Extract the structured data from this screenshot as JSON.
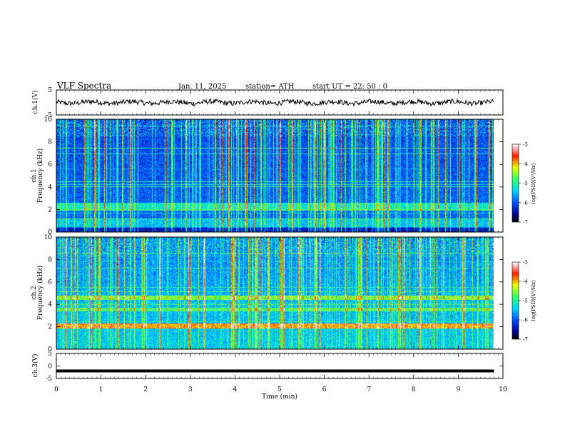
{
  "header": {
    "title": "VLF  Spectra",
    "date": "Jan.  11,  2025",
    "station": "station= ATH",
    "start": "start  UT  =    22:  50 :  0"
  },
  "chart_data": [
    {
      "type": "line",
      "panel": "ch1-waveform",
      "ylabel": "ch.1(V)",
      "ylim": [
        -5,
        5
      ],
      "yticks": [
        "5",
        "-5"
      ],
      "xlim": [
        0,
        10
      ],
      "x_data_end": 9.8,
      "approx_level": 0,
      "approx_amplitude": 1
    },
    {
      "type": "heatmap",
      "panel": "ch1-spectrogram",
      "ylabel_line1": "ch.1",
      "ylabel_line2": "Frequency  (kHz)",
      "ylim": [
        0,
        10
      ],
      "yticks": [
        "0",
        "2",
        "4",
        "6",
        "8",
        "10"
      ],
      "xlim": [
        0,
        10
      ],
      "colorbar": {
        "label": "log(PSD)(V²/Hz)",
        "ticks": [
          "-3",
          "-4",
          "-5",
          "-6",
          "-7"
        ],
        "range": [
          -7,
          -3
        ]
      }
    },
    {
      "type": "heatmap",
      "panel": "ch2-spectrogram",
      "ylabel_line1": "ch.2",
      "ylabel_line2": "Frequency  (kHz)",
      "ylim": [
        0,
        10
      ],
      "yticks": [
        "0",
        "2",
        "4",
        "6",
        "8",
        "10"
      ],
      "xlim": [
        0,
        10
      ],
      "colorbar": {
        "label": "log(PSD)(V²/Hz)",
        "ticks": [
          "-3",
          "-4",
          "-5",
          "-6",
          "-7"
        ],
        "range": [
          -7,
          -3
        ]
      }
    },
    {
      "type": "line",
      "panel": "ch3-waveform",
      "ylabel": "ch.3(V)",
      "ylim": [
        -5,
        5
      ],
      "yticks": [
        "5",
        "0",
        "-5"
      ],
      "xlim": [
        0,
        10
      ],
      "x_data_end": 9.8,
      "approx_level": -2,
      "xlabel": "Time  (min)",
      "xticks": [
        "0",
        "1",
        "2",
        "3",
        "4",
        "5",
        "6",
        "7",
        "8",
        "9",
        "10"
      ]
    }
  ]
}
